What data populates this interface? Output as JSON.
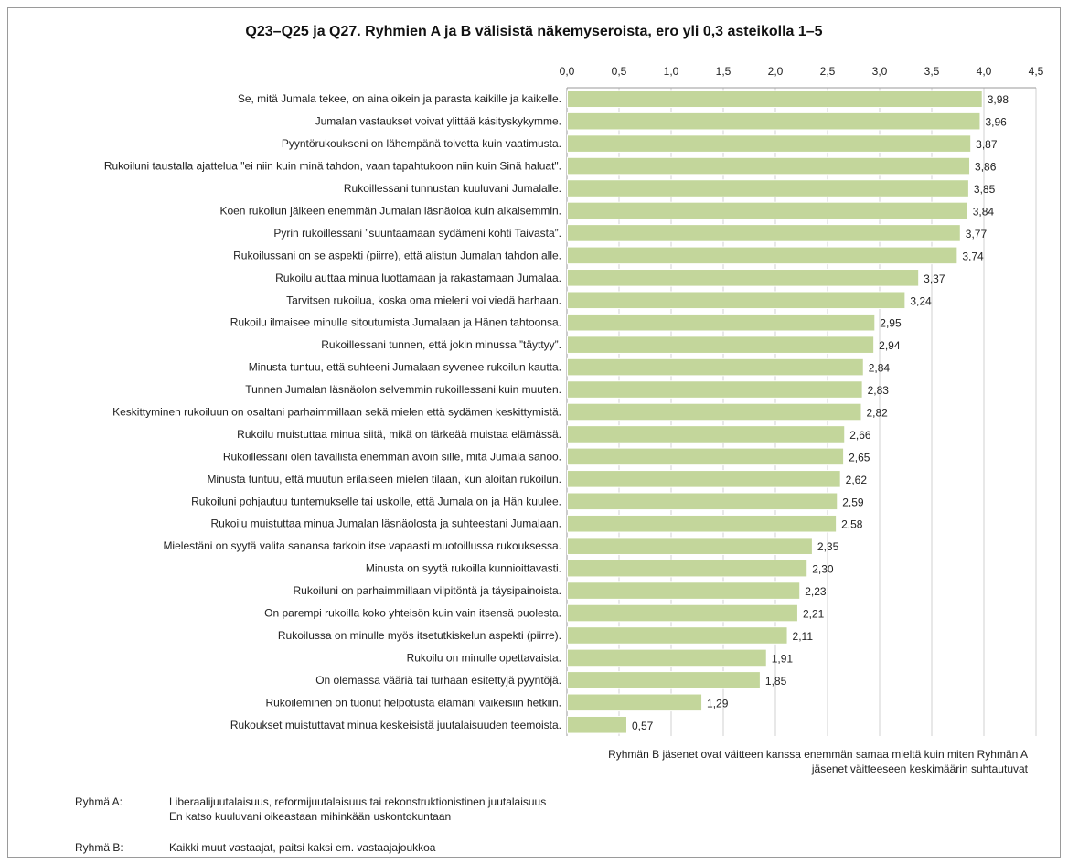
{
  "chart_data": {
    "type": "bar",
    "orientation": "horizontal",
    "title": "Q23–Q25 ja Q27. Ryhmien A ja B välisistä näkemyseroista, ero yli 0,3 asteikolla 1–5",
    "xlim": [
      0,
      4.5
    ],
    "xticks": [
      "0,0",
      "0,5",
      "1,0",
      "1,5",
      "2,0",
      "2,5",
      "3,0",
      "3,5",
      "4,0",
      "4,5"
    ],
    "x_axis_position": "top",
    "grid": "vertical",
    "bar_color": "#c3d69b",
    "categories": [
      "Se, mitä Jumala tekee, on aina oikein ja parasta kaikille ja kaikelle.",
      "Jumalan vastaukset voivat ylittää käsityskykymme.",
      "Pyyntörukoukseni on lähempänä toivetta kuin vaatimusta.",
      "Rukoiluni taustalla ajattelua \"ei niin kuin minä tahdon, vaan tapahtukoon niin kuin Sinä haluat\".",
      "Rukoillessani tunnustan kuuluvani Jumalalle.",
      "Koen rukoilun jälkeen enemmän Jumalan läsnäoloa kuin aikaisemmin.",
      "Pyrin rukoillessani ”suuntaamaan sydämeni kohti Taivasta”.",
      "Rukoilussani on se aspekti (piirre), että alistun Jumalan tahdon alle.",
      "Rukoilu auttaa minua luottamaan ja rakastamaan Jumalaa.",
      "Tarvitsen rukoilua, koska oma mieleni voi viedä harhaan.",
      "Rukoilu ilmaisee minulle sitoutumista Jumalaan ja Hänen tahtoonsa.",
      "Rukoillessani tunnen, että jokin minussa ”täyttyy”.",
      "Minusta tuntuu, että suhteeni Jumalaan syvenee rukoilun kautta.",
      "Tunnen Jumalan läsnäolon selvemmin rukoillessani kuin muuten.",
      "Keskittyminen rukoiluun on osaltani parhaimmillaan sekä mielen että sydämen keskittymistä.",
      "Rukoilu muistuttaa minua siitä, mikä on tärkeää muistaa elämässä.",
      "Rukoillessani olen tavallista enemmän avoin sille, mitä Jumala sanoo.",
      "Minusta tuntuu, että muutun erilaiseen mielen tilaan, kun aloitan rukoilun.",
      "Rukoiluni pohjautuu tuntemukselle tai uskolle, että Jumala on ja Hän kuulee.",
      "Rukoilu muistuttaa minua Jumalan läsnäolosta ja suhteestani Jumalaan.",
      "Mielestäni on syytä valita sanansa tarkoin itse vapaasti muotoillussa rukouksessa.",
      "Minusta on syytä rukoilla kunnioittavasti.",
      "Rukoiluni on parhaimmillaan vilpitöntä ja täysipainoista.",
      "On parempi rukoilla koko yhteisön kuin vain itsensä puolesta.",
      "Rukoilussa on minulle myös itsetutkiskelun aspekti (piirre).",
      "Rukoilu on minulle opettavaista.",
      "On olemassa vääriä tai turhaan esitettyjä pyyntöjä.",
      "Rukoileminen on tuonut helpotusta elämäni vaikeisiin hetkiin.",
      "Rukoukset muistuttavat minua keskeisistä juutalaisuuden teemoista."
    ],
    "values": [
      3.98,
      3.96,
      3.87,
      3.86,
      3.85,
      3.84,
      3.77,
      3.74,
      3.37,
      3.24,
      2.95,
      2.94,
      2.84,
      2.83,
      2.82,
      2.66,
      2.65,
      2.62,
      2.59,
      2.58,
      2.35,
      2.3,
      2.23,
      2.21,
      2.11,
      1.91,
      1.85,
      1.29,
      0.57
    ],
    "value_labels": [
      "3,98",
      "3,96",
      "3,87",
      "3,86",
      "3,85",
      "3,84",
      "3,77",
      "3,74",
      "3,37",
      "3,24",
      "2,95",
      "2,94",
      "2,84",
      "2,83",
      "2,82",
      "2,66",
      "2,65",
      "2,62",
      "2,59",
      "2,58",
      "2,35",
      "2,30",
      "2,23",
      "2,21",
      "2,11",
      "1,91",
      "1,85",
      "1,29",
      "0,57"
    ]
  },
  "note": {
    "line1": "Ryhmän B jäsenet ovat väitteen kanssa enemmän samaa mieltä kuin miten Ryhmän A",
    "line2": "jäsenet väitteeseen keskimäärin suhtautuvat"
  },
  "legend": {
    "group_a_key": "Ryhmä A:",
    "group_a_line1": "Liberaalijuutalaisuus, reformijuutalaisuus tai rekonstruktionistinen juutalaisuus",
    "group_a_line2": "En katso kuuluvani oikeastaan mihinkään uskontokuntaan",
    "group_b_key": "Ryhmä B:",
    "group_b_line1": "Kaikki muut vastaajat, paitsi kaksi em. vastaajajoukkoa"
  }
}
